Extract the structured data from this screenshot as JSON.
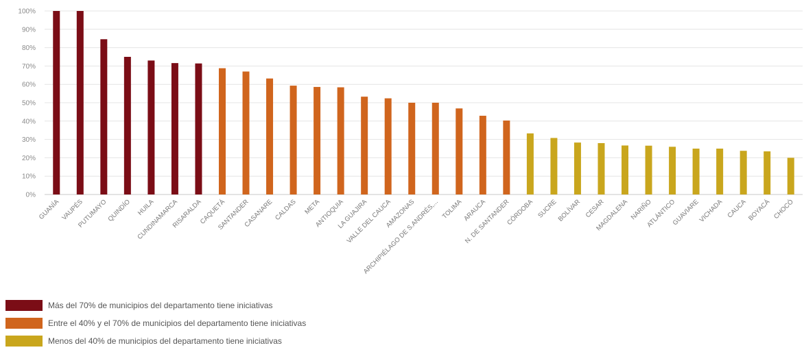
{
  "chart_data": {
    "type": "bar",
    "title": "",
    "xlabel": "",
    "ylabel": "",
    "ylim": [
      0,
      100
    ],
    "y_tick_format": "percent",
    "y_ticks": [
      "0%",
      "10%",
      "20%",
      "30%",
      "40%",
      "50%",
      "60%",
      "70%",
      "80%",
      "90%",
      "100%"
    ],
    "grid": true,
    "legend_position": "bottom-left",
    "groups": [
      {
        "key": "high",
        "color": "#7b0d16",
        "label": "Más del 70% de municipios del departamento tiene iniciativas"
      },
      {
        "key": "mid",
        "color": "#d0651d",
        "label": "Entre el 40% y el 70% de municipios del departamento tiene iniciativas"
      },
      {
        "key": "low",
        "color": "#c9a61d",
        "label": "Menos del 40% de municipios del departamento tiene iniciativas"
      }
    ],
    "categories": [
      "GUANÍA",
      "VAUPÉS",
      "PUTUMAYO",
      "QUINDÍO",
      "HUILA",
      "CUNDINAMARCA",
      "RISARALDA",
      "CAQUETÁ",
      "SANTANDER",
      "CASANARE",
      "CALDAS",
      "META",
      "ANTIOQUIA",
      "LA GUAJIRA",
      "VALLE DEL CAUCA",
      "AMAZONAS",
      "ARCHIPIÉLAGO DE S.ANDRÉS,...",
      "TOLIMA",
      "ARAUCA",
      "N. DE SANTANDER",
      "CÓRDOBA",
      "SUCRE",
      "BOLÍVAR",
      "CESAR",
      "MAGDALENA",
      "NARIÑO",
      "ATLÁNTICO",
      "GUAVIARE",
      "VICHADA",
      "CAUCA",
      "BOYACÁ",
      "CHOCÓ"
    ],
    "values": [
      100,
      100,
      84.6,
      75,
      73,
      71.6,
      71.4,
      68.8,
      67,
      63.2,
      59.3,
      58.6,
      58.4,
      53.3,
      52.4,
      50,
      50,
      46.9,
      42.9,
      40.3,
      33.3,
      30.8,
      28.3,
      28,
      26.7,
      26.6,
      26,
      25,
      25,
      23.8,
      23.5,
      20
    ],
    "bar_groups": [
      "high",
      "high",
      "high",
      "high",
      "high",
      "high",
      "high",
      "mid",
      "mid",
      "mid",
      "mid",
      "mid",
      "mid",
      "mid",
      "mid",
      "mid",
      "mid",
      "mid",
      "mid",
      "mid",
      "low",
      "low",
      "low",
      "low",
      "low",
      "low",
      "low",
      "low",
      "low",
      "low",
      "low",
      "low"
    ]
  }
}
